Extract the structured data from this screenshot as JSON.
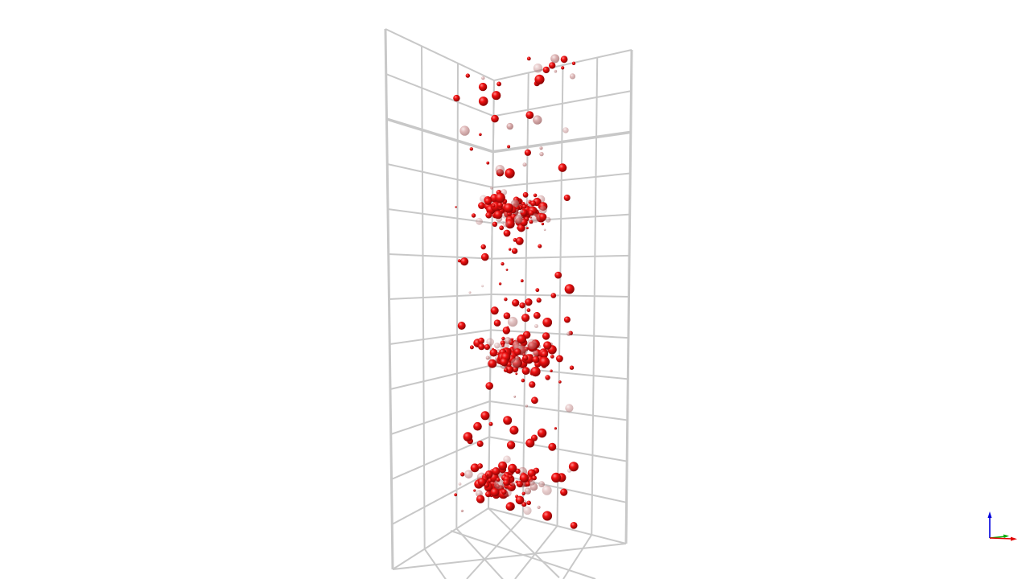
{
  "viewer": {
    "background_color": "#ffffff",
    "grid_color": "#c8c8c8",
    "particle_color": "#ee0000",
    "particle_shading": "sphere-gradient",
    "projection": "perspective"
  },
  "scene": {
    "grid_walls": [
      "left-wall",
      "back-wall",
      "floor"
    ],
    "particle_clusters": 3
  },
  "axis_triad": {
    "icons": [
      "z-axis-arrow-icon",
      "y-axis-arrow-icon",
      "x-axis-arrow-icon"
    ],
    "colors": {
      "x": "#e00000",
      "y": "#00aa00",
      "z": "#0000dd"
    }
  }
}
